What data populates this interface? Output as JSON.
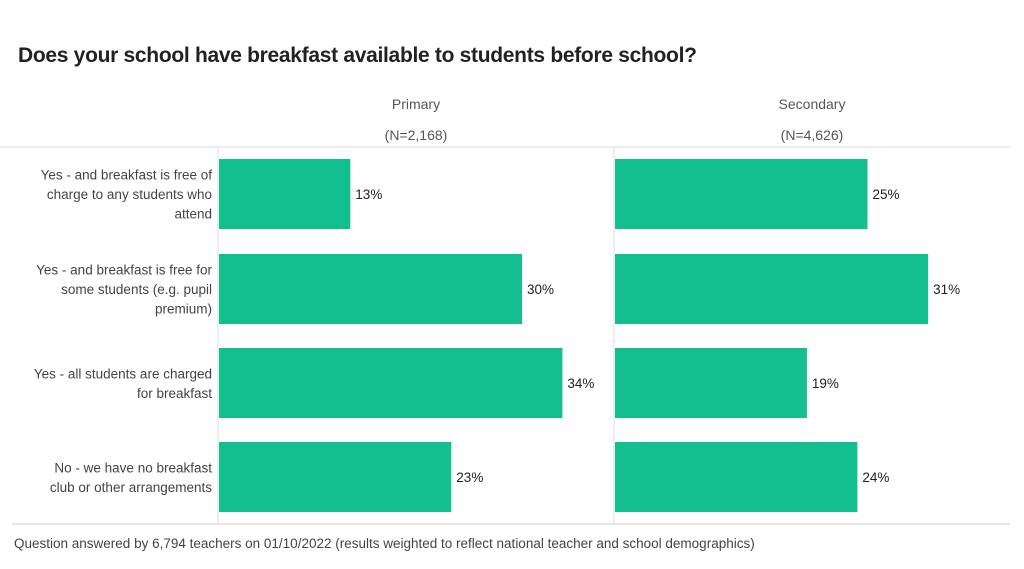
{
  "chart_data": {
    "type": "bar",
    "orientation": "horizontal",
    "title": "Does your school have breakfast available to students before school?",
    "categories": [
      "Yes - and breakfast is free of charge to any students who attend",
      "Yes - and breakfast is free for some students (e.g. pupil premium)",
      "Yes - all students are charged for breakfast",
      "No - we have no breakfast club or other arrangements"
    ],
    "category_lines": [
      [
        "Yes - and breakfast is free of",
        "charge to any students who",
        "attend"
      ],
      [
        "Yes - and breakfast is free for",
        "some students (e.g. pupil",
        "premium)"
      ],
      [
        "Yes - all students are charged",
        "for breakfast"
      ],
      [
        "No - we have no breakfast",
        "club or other arrangements"
      ]
    ],
    "panels": [
      {
        "name": "Primary",
        "n_label": "(N=2,168)",
        "values": [
          13,
          30,
          34,
          23
        ],
        "labels": [
          "13%",
          "30%",
          "34%",
          "23%"
        ]
      },
      {
        "name": "Secondary",
        "n_label": "(N=4,626)",
        "values": [
          25,
          31,
          19,
          24
        ],
        "labels": [
          "25%",
          "31%",
          "19%",
          "24%"
        ]
      }
    ],
    "unit": "%",
    "bar_color": "#13BE8F",
    "grid": false,
    "legend": "none",
    "footnote": "Question answered by 6,794 teachers on 01/10/2022 (results weighted to reflect national teacher and school demographics)"
  }
}
